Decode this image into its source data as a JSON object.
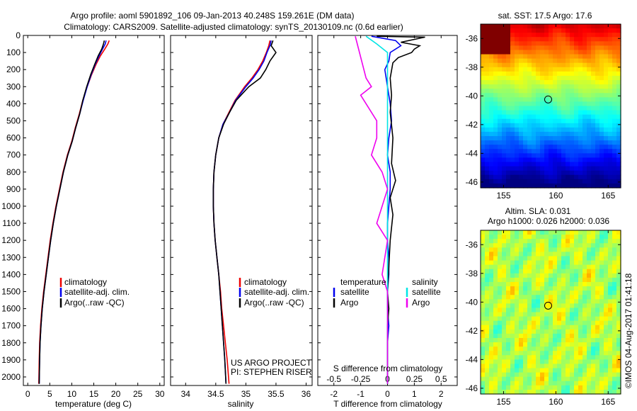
{
  "title_line1": "Argo profile: aoml 5901892_106 09-Jan-2013 40.248S 159.261E (DM data)",
  "title_line2": "Climatology: CARS2009. Satellite-adjusted climatology: synTS_20130109.nc (0.6d earlier)",
  "project_line1": "US ARGO PROJECT",
  "project_line2": "PI: STEPHEN RISER",
  "credit": "©IMOS 04-Aug-2017 01:41:18",
  "colors": {
    "climatology": "#ee0000",
    "satellite": "#0000ee",
    "argo": "#000000",
    "sat_salinity": "#00e5e5",
    "argo_salinity": "#ee00ee"
  },
  "legend_profiles": [
    "climatology",
    "satellite-adj. clim.",
    "Argo(..raw -QC)"
  ],
  "legend_diff": {
    "temperature_header": "temperature",
    "salinity_header": "salinity",
    "satellite": "satellite",
    "argo": "Argo"
  },
  "maps": {
    "sst_title": "sat. SST: 17.5 Argo: 17.6",
    "sla_title_line1": "Altim. SLA: 0.031",
    "sla_title_line2": "Argo h1000: 0.026 h2000: 0.036",
    "float_lon": 159.261,
    "float_lat": -40.248
  },
  "chart_data": [
    {
      "type": "line",
      "xlabel": "temperature (deg C)",
      "xlim": [
        -1,
        31
      ],
      "xticks": [
        0,
        5,
        10,
        15,
        20,
        25,
        30
      ],
      "ylim": [
        2050,
        0
      ],
      "yticks": [
        0,
        100,
        200,
        300,
        400,
        500,
        600,
        700,
        800,
        900,
        1000,
        1100,
        1200,
        1300,
        1400,
        1500,
        1600,
        1700,
        1800,
        1900,
        2000
      ],
      "series": [
        {
          "name": "climatology",
          "color": "#ee0000",
          "x": [
            18.5,
            18.2,
            17.5,
            16.5,
            15.5,
            14.5,
            13.5,
            12.5,
            11.7,
            10.8,
            10.0,
            9.0,
            8.0,
            7.2,
            6.4,
            5.7,
            5.1,
            4.6,
            4.1,
            3.6,
            3.2,
            2.9,
            2.7,
            2.6,
            2.5
          ],
          "y": [
            30,
            50,
            80,
            120,
            170,
            230,
            300,
            380,
            460,
            540,
            620,
            700,
            800,
            900,
            1000,
            1100,
            1200,
            1300,
            1400,
            1500,
            1600,
            1700,
            1800,
            1900,
            2040
          ]
        },
        {
          "name": "satellite-adj. clim.",
          "color": "#0000ee",
          "x": [
            17.8,
            17.6,
            17.0,
            16.2,
            15.3,
            14.4,
            13.5,
            12.6,
            11.8,
            10.9,
            10.1,
            9.1,
            8.1,
            7.3,
            6.5,
            5.8,
            5.2,
            4.7,
            4.2,
            3.7,
            3.3,
            3.0,
            2.8,
            2.7,
            2.6
          ],
          "y": [
            30,
            50,
            80,
            120,
            170,
            230,
            300,
            380,
            460,
            540,
            620,
            700,
            800,
            900,
            1000,
            1100,
            1200,
            1300,
            1400,
            1500,
            1600,
            1700,
            1800,
            1900,
            2040
          ]
        },
        {
          "name": "Argo(..raw -QC)",
          "color": "#000000",
          "x": [
            17.4,
            17.2,
            16.8,
            16.0,
            15.2,
            14.3,
            13.4,
            12.5,
            11.8,
            10.9,
            10.1,
            9.1,
            8.1,
            7.3,
            6.5,
            5.8,
            5.2,
            4.7,
            4.2,
            3.7,
            3.3,
            3.0,
            2.8,
            2.7,
            2.6
          ],
          "y": [
            30,
            50,
            80,
            120,
            170,
            230,
            300,
            380,
            460,
            540,
            620,
            700,
            800,
            900,
            1000,
            1100,
            1200,
            1300,
            1400,
            1500,
            1600,
            1700,
            1800,
            1900,
            2040
          ]
        }
      ]
    },
    {
      "type": "line",
      "xlabel": "salinity",
      "xlim": [
        33.75,
        36.1
      ],
      "xticks": [
        34,
        34.5,
        35,
        35.5,
        36
      ],
      "ylim": [
        2050,
        0
      ],
      "series": [
        {
          "name": "climatology",
          "color": "#ee0000",
          "x": [
            35.4,
            35.38,
            35.34,
            35.28,
            35.2,
            35.1,
            34.98,
            34.82,
            34.72,
            34.62,
            34.55,
            34.5,
            34.47,
            34.46,
            34.46,
            34.47,
            34.49,
            34.52,
            34.55,
            34.58,
            34.6,
            34.63,
            34.66,
            34.69,
            34.72
          ],
          "y": [
            30,
            60,
            100,
            150,
            200,
            250,
            300,
            380,
            450,
            520,
            600,
            700,
            800,
            900,
            1000,
            1100,
            1200,
            1300,
            1400,
            1500,
            1600,
            1700,
            1800,
            1900,
            2040
          ]
        },
        {
          "name": "satellite-adj. clim.",
          "color": "#0000ee",
          "x": [
            35.42,
            35.4,
            35.35,
            35.3,
            35.22,
            35.12,
            35.0,
            34.83,
            34.73,
            34.62,
            34.55,
            34.5,
            34.47,
            34.46,
            34.46,
            34.47,
            34.49,
            34.52,
            34.55,
            34.57,
            34.59,
            34.61,
            34.63,
            34.65,
            34.67
          ],
          "y": [
            30,
            60,
            100,
            150,
            200,
            250,
            300,
            380,
            450,
            520,
            600,
            700,
            800,
            900,
            1000,
            1100,
            1200,
            1300,
            1400,
            1500,
            1600,
            1700,
            1800,
            1900,
            2040
          ]
        },
        {
          "name": "Argo(..raw -QC)",
          "color": "#000000",
          "x": [
            35.45,
            35.42,
            35.5,
            35.4,
            35.33,
            35.24,
            35.05,
            34.84,
            34.73,
            34.63,
            34.55,
            34.5,
            34.47,
            34.46,
            34.46,
            34.47,
            34.49,
            34.52,
            34.55,
            34.57,
            34.59,
            34.61,
            34.63,
            34.65,
            34.67
          ],
          "y": [
            30,
            60,
            100,
            150,
            200,
            250,
            300,
            380,
            450,
            520,
            600,
            700,
            800,
            900,
            1000,
            1100,
            1200,
            1300,
            1400,
            1500,
            1600,
            1700,
            1800,
            1900,
            2040
          ]
        }
      ]
    },
    {
      "type": "line",
      "xlabel": "T difference from climatology",
      "xlabel_top": "S difference from climatology",
      "xlim": [
        -2.6,
        2.6
      ],
      "xticks": [
        -2,
        -1,
        0,
        1,
        2
      ],
      "xticks_top": [
        -0.5,
        -0.25,
        0,
        0.25,
        0.5
      ],
      "ylim": [
        2050,
        0
      ],
      "series": [
        {
          "name": "temperature satellite",
          "color": "#0000ee",
          "x": [
            -0.6,
            0.3,
            0.5,
            0.1,
            0.05,
            -0.1,
            0.0,
            0.1,
            0.15,
            0.05,
            0.0,
            0.1,
            0.1,
            0.05,
            0.0,
            0.0,
            0.05,
            0.05,
            0.0,
            0.0,
            0.05,
            0.0,
            0.0,
            0.0,
            0.0
          ],
          "y": [
            5,
            30,
            60,
            100,
            150,
            200,
            300,
            400,
            500,
            600,
            700,
            800,
            900,
            1000,
            1100,
            1200,
            1300,
            1400,
            1500,
            1600,
            1700,
            1800,
            1900,
            2000,
            2040
          ]
        },
        {
          "name": "temperature Argo",
          "color": "#000000",
          "x": [
            -0.4,
            1.4,
            0.5,
            1.2,
            1.0,
            0.9,
            0.4,
            0.2,
            0.1,
            0.15,
            0.1,
            0.2,
            0.15,
            0.3,
            0.1,
            0.2,
            0.1,
            0.05,
            0.0,
            0.05,
            0.0,
            0.0,
            0.0,
            0.0,
            0.0
          ],
          "y": [
            5,
            10,
            40,
            60,
            80,
            100,
            130,
            160,
            250,
            350,
            450,
            600,
            750,
            850,
            950,
            1050,
            1200,
            1350,
            1500,
            1600,
            1700,
            1800,
            1900,
            2000,
            2040
          ]
        },
        {
          "name": "salinity satellite",
          "color": "#00e5e5",
          "x": [
            -0.2,
            -0.1,
            0.0,
            0.0,
            0.0,
            0.0,
            0.0,
            0.0,
            0.0,
            0.0,
            0.0,
            0.0,
            0.0,
            0.0,
            0.0,
            0.0,
            0.0
          ],
          "y": [
            5,
            50,
            100,
            200,
            300,
            400,
            500,
            600,
            700,
            800,
            1000,
            1200,
            1400,
            1600,
            1800,
            2000,
            2040
          ]
        },
        {
          "name": "salinity Argo",
          "color": "#ee00ee",
          "x": [
            -0.3,
            -0.2,
            -0.15,
            -0.25,
            -0.1,
            -0.1,
            -0.15,
            -0.05,
            0.0,
            -0.05,
            -0.1,
            0.0,
            -0.05,
            0.0,
            0.0,
            0.0,
            0.0
          ],
          "y": [
            5,
            250,
            300,
            350,
            500,
            600,
            700,
            800,
            900,
            1000,
            1100,
            1200,
            1400,
            1500,
            1700,
            1900,
            2040
          ]
        }
      ]
    }
  ]
}
